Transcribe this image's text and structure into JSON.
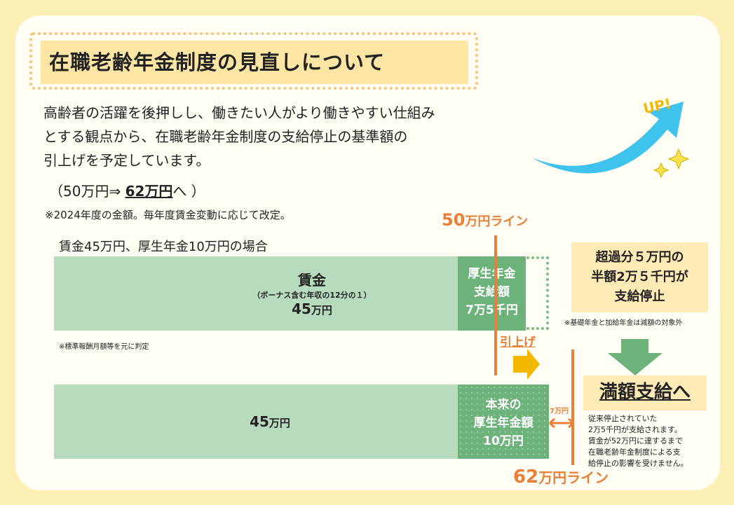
{
  "title": "在職老齢年金制度の見直しについて",
  "intro": {
    "line1": "高齢者の活躍を後押しし、働きたい人がより働きやすい仕組み",
    "line2": "とする観点から、在職老齢年金制度の支給停止の基準額の",
    "line3": "引上げを予定しています。",
    "change_prefix": "（50万円⇒ ",
    "change_new": "62万円",
    "change_suffix": "へ ）",
    "note": "※2024年度の金額。毎年度賃金変動に応じて改定。"
  },
  "up_label": "UP!",
  "case_label": "賃金45万円、厚生年金10万円の場合",
  "line50": {
    "num": "50",
    "unit": "万円ライン"
  },
  "line62": {
    "num": "62",
    "unit": "万円ライン"
  },
  "top_bar": {
    "wage_title": "賃金",
    "wage_sub": "（ボーナス含む年収の12分の１）",
    "wage_num": "45",
    "wage_unit": "万円",
    "pension_l1": "厚生年金",
    "pension_l2": "支給額",
    "pension_l3": "7万5千円",
    "note": "※標準報酬月額等を元に判定"
  },
  "raise_label": "引上げ",
  "bottom_bar": {
    "wage_num": "45",
    "wage_unit": "万円",
    "pension_l1": "本来の",
    "pension_l2": "厚生年金額",
    "pension_l3": "10万円",
    "gap": "7万円"
  },
  "excess": {
    "l1": "超過分５万円の",
    "l2": "半額2万５千円が",
    "l3": "支給停止",
    "note": "※基礎年金と加給年金は減額の対象外"
  },
  "full": {
    "title": "満額支給へ",
    "desc1": "従来停止されていた",
    "desc2": "2万5千円が支給されます。",
    "desc3": "賃金が52万円に達するまで",
    "desc4": "在職老齢年金制度による支",
    "desc5": "給停止の影響を受けません。"
  },
  "colors": {
    "light_green": "#b7dbbd",
    "dark_green": "#6cb27a",
    "orange": "#e8803a",
    "yellow_arrow": "#f5b800",
    "up_arrow": "#3fc3ec"
  }
}
